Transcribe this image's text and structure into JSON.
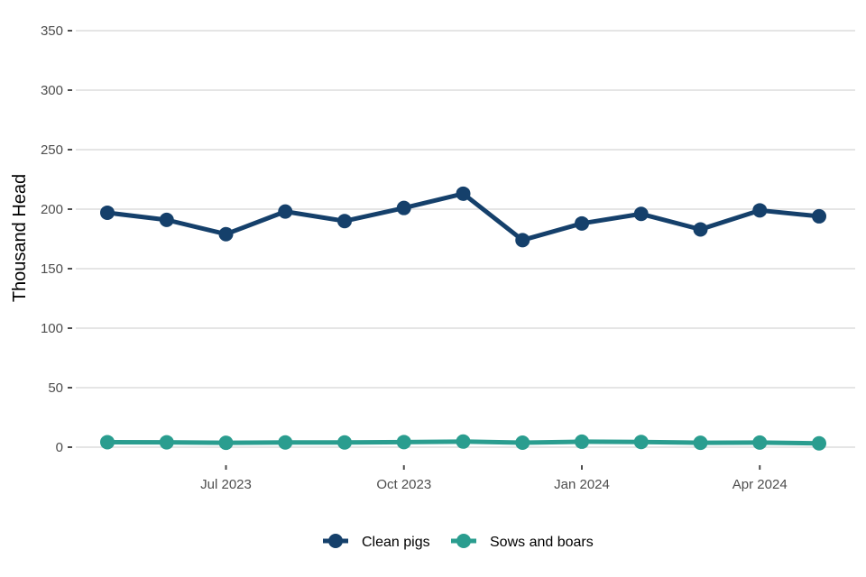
{
  "chart_data": {
    "type": "line",
    "ylabel": "Thousand Head",
    "xlabel": "",
    "ylim": [
      0,
      350
    ],
    "yticks": [
      0,
      50,
      100,
      150,
      200,
      250,
      300,
      350
    ],
    "x": [
      "2023-05",
      "2023-06",
      "2023-07",
      "2023-08",
      "2023-09",
      "2023-10",
      "2023-11",
      "2023-12",
      "2024-01",
      "2024-02",
      "2024-03",
      "2024-04",
      "2024-05"
    ],
    "xticks": [
      {
        "x": "2023-07",
        "label": "Jul 2023"
      },
      {
        "x": "2023-10",
        "label": "Oct 2023"
      },
      {
        "x": "2024-01",
        "label": "Jan 2024"
      },
      {
        "x": "2024-04",
        "label": "Apr 2024"
      }
    ],
    "series": [
      {
        "name": "Clean pigs",
        "color": "#15406b",
        "values": [
          197,
          191,
          179,
          198,
          190,
          201,
          213,
          174,
          188,
          196,
          183,
          199,
          194
        ]
      },
      {
        "name": "Sows and boars",
        "color": "#2a9d8f",
        "values": [
          4.2,
          4.1,
          3.7,
          4.0,
          4.0,
          4.3,
          4.7,
          3.8,
          4.6,
          4.4,
          3.7,
          3.9,
          3.2
        ]
      }
    ],
    "grid": true,
    "legend_position": "bottom"
  }
}
